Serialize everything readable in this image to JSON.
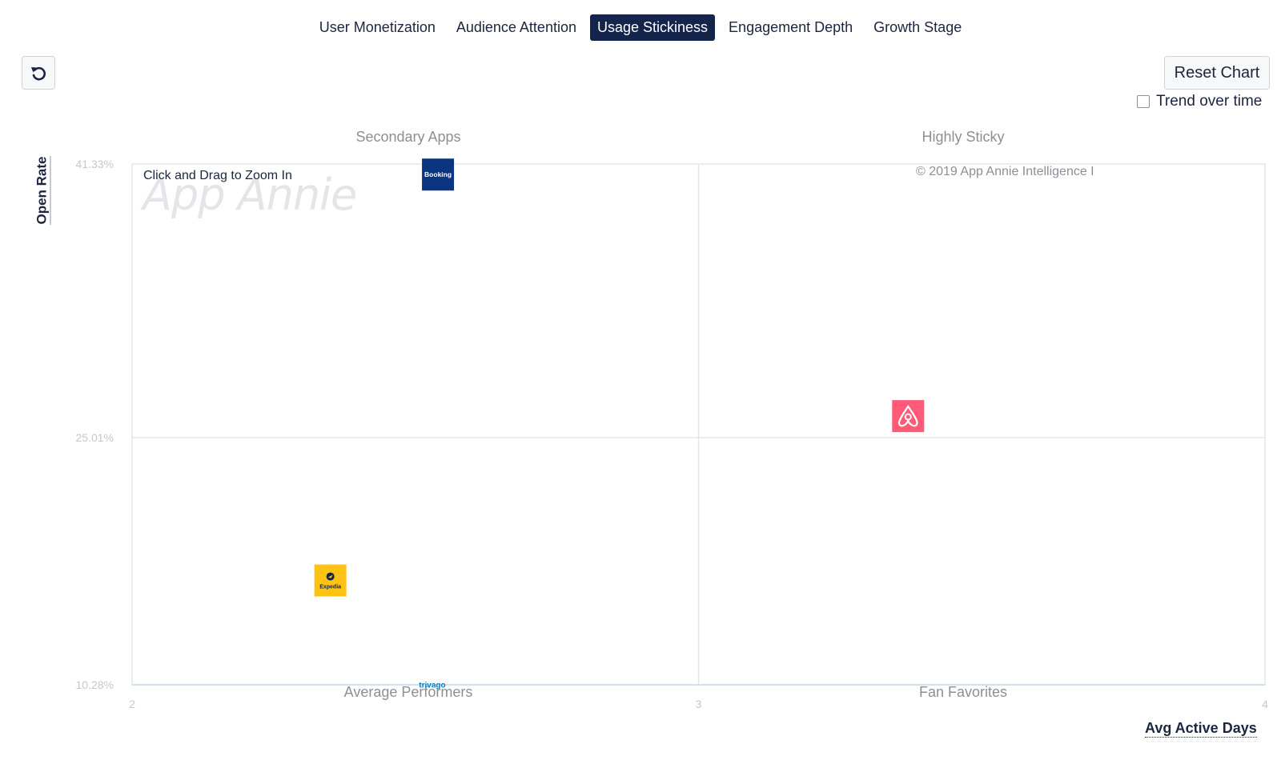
{
  "tabs": [
    {
      "label": "User Monetization",
      "active": false
    },
    {
      "label": "Audience Attention",
      "active": false
    },
    {
      "label": "Usage Stickiness",
      "active": true
    },
    {
      "label": "Engagement Depth",
      "active": false
    },
    {
      "label": "Growth Stage",
      "active": false
    }
  ],
  "controls": {
    "undo_icon": "undo-icon",
    "reset_label": "Reset Chart",
    "trend_label": "Trend over time",
    "trend_checked": false,
    "zoom_hint": "Click and Drag to Zoom In"
  },
  "watermark": "App Annie",
  "copyright": "© 2019 App Annie Intelligence I",
  "quadrants": {
    "top_left": "Secondary Apps",
    "top_right": "Highly Sticky",
    "bottom_left": "Average Performers",
    "bottom_right": "Fan Favorites"
  },
  "chart_data": {
    "type": "scatter",
    "xlabel": "Avg Active Days",
    "ylabel": "Open Rate",
    "xlim": [
      2,
      4
    ],
    "ylim": [
      10.28,
      41.33
    ],
    "x_ticks": [
      {
        "value": 2,
        "label": "2"
      },
      {
        "value": 3,
        "label": "3"
      },
      {
        "value": 4,
        "label": "4"
      }
    ],
    "y_ticks": [
      {
        "value": 10.28,
        "label": "10.28%"
      },
      {
        "value": 25.01,
        "label": "25.01%"
      },
      {
        "value": 41.33,
        "label": "41.33%"
      }
    ],
    "points": [
      {
        "app": "Booking",
        "icon": "booking-logo",
        "x": 2.54,
        "y": 40.7,
        "color": "#0b3580",
        "text_color": "#ffffff"
      },
      {
        "app": "Airbnb",
        "icon": "airbnb-logo",
        "x": 3.37,
        "y": 26.3,
        "color": "#ff5a78",
        "text_color": "#ffffff"
      },
      {
        "app": "Expedia",
        "icon": "expedia-logo",
        "x": 2.35,
        "y": 16.5,
        "color": "#fcc214",
        "text_color": "#1c2540"
      },
      {
        "app": "trivago",
        "icon": "trivago-logo",
        "x": 2.53,
        "y": 10.3,
        "color": "#ffffff",
        "text_color": "#0a7dc1"
      }
    ],
    "grid": true,
    "legend": "none"
  }
}
